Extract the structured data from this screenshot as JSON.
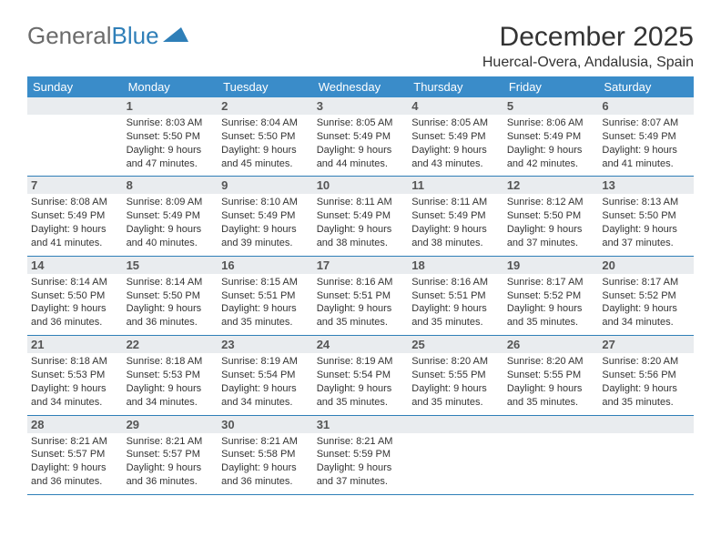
{
  "logo": {
    "text_gray": "General",
    "text_blue": "Blue",
    "shape_color": "#2f7fb8"
  },
  "title": "December 2025",
  "location": "Huercal-Overa, Andalusia, Spain",
  "header_bg": "#3a8cc9",
  "daynum_bg": "#e9ecef",
  "border_color": "#2f7fb8",
  "weekdays": [
    "Sunday",
    "Monday",
    "Tuesday",
    "Wednesday",
    "Thursday",
    "Friday",
    "Saturday"
  ],
  "first_weekday_index": 1,
  "days_in_month": 31,
  "days": {
    "1": {
      "sunrise": "8:03 AM",
      "sunset": "5:50 PM",
      "daylight": "9 hours and 47 minutes."
    },
    "2": {
      "sunrise": "8:04 AM",
      "sunset": "5:50 PM",
      "daylight": "9 hours and 45 minutes."
    },
    "3": {
      "sunrise": "8:05 AM",
      "sunset": "5:49 PM",
      "daylight": "9 hours and 44 minutes."
    },
    "4": {
      "sunrise": "8:05 AM",
      "sunset": "5:49 PM",
      "daylight": "9 hours and 43 minutes."
    },
    "5": {
      "sunrise": "8:06 AM",
      "sunset": "5:49 PM",
      "daylight": "9 hours and 42 minutes."
    },
    "6": {
      "sunrise": "8:07 AM",
      "sunset": "5:49 PM",
      "daylight": "9 hours and 41 minutes."
    },
    "7": {
      "sunrise": "8:08 AM",
      "sunset": "5:49 PM",
      "daylight": "9 hours and 41 minutes."
    },
    "8": {
      "sunrise": "8:09 AM",
      "sunset": "5:49 PM",
      "daylight": "9 hours and 40 minutes."
    },
    "9": {
      "sunrise": "8:10 AM",
      "sunset": "5:49 PM",
      "daylight": "9 hours and 39 minutes."
    },
    "10": {
      "sunrise": "8:11 AM",
      "sunset": "5:49 PM",
      "daylight": "9 hours and 38 minutes."
    },
    "11": {
      "sunrise": "8:11 AM",
      "sunset": "5:49 PM",
      "daylight": "9 hours and 38 minutes."
    },
    "12": {
      "sunrise": "8:12 AM",
      "sunset": "5:50 PM",
      "daylight": "9 hours and 37 minutes."
    },
    "13": {
      "sunrise": "8:13 AM",
      "sunset": "5:50 PM",
      "daylight": "9 hours and 37 minutes."
    },
    "14": {
      "sunrise": "8:14 AM",
      "sunset": "5:50 PM",
      "daylight": "9 hours and 36 minutes."
    },
    "15": {
      "sunrise": "8:14 AM",
      "sunset": "5:50 PM",
      "daylight": "9 hours and 36 minutes."
    },
    "16": {
      "sunrise": "8:15 AM",
      "sunset": "5:51 PM",
      "daylight": "9 hours and 35 minutes."
    },
    "17": {
      "sunrise": "8:16 AM",
      "sunset": "5:51 PM",
      "daylight": "9 hours and 35 minutes."
    },
    "18": {
      "sunrise": "8:16 AM",
      "sunset": "5:51 PM",
      "daylight": "9 hours and 35 minutes."
    },
    "19": {
      "sunrise": "8:17 AM",
      "sunset": "5:52 PM",
      "daylight": "9 hours and 35 minutes."
    },
    "20": {
      "sunrise": "8:17 AM",
      "sunset": "5:52 PM",
      "daylight": "9 hours and 34 minutes."
    },
    "21": {
      "sunrise": "8:18 AM",
      "sunset": "5:53 PM",
      "daylight": "9 hours and 34 minutes."
    },
    "22": {
      "sunrise": "8:18 AM",
      "sunset": "5:53 PM",
      "daylight": "9 hours and 34 minutes."
    },
    "23": {
      "sunrise": "8:19 AM",
      "sunset": "5:54 PM",
      "daylight": "9 hours and 34 minutes."
    },
    "24": {
      "sunrise": "8:19 AM",
      "sunset": "5:54 PM",
      "daylight": "9 hours and 35 minutes."
    },
    "25": {
      "sunrise": "8:20 AM",
      "sunset": "5:55 PM",
      "daylight": "9 hours and 35 minutes."
    },
    "26": {
      "sunrise": "8:20 AM",
      "sunset": "5:55 PM",
      "daylight": "9 hours and 35 minutes."
    },
    "27": {
      "sunrise": "8:20 AM",
      "sunset": "5:56 PM",
      "daylight": "9 hours and 35 minutes."
    },
    "28": {
      "sunrise": "8:21 AM",
      "sunset": "5:57 PM",
      "daylight": "9 hours and 36 minutes."
    },
    "29": {
      "sunrise": "8:21 AM",
      "sunset": "5:57 PM",
      "daylight": "9 hours and 36 minutes."
    },
    "30": {
      "sunrise": "8:21 AM",
      "sunset": "5:58 PM",
      "daylight": "9 hours and 36 minutes."
    },
    "31": {
      "sunrise": "8:21 AM",
      "sunset": "5:59 PM",
      "daylight": "9 hours and 37 minutes."
    }
  },
  "labels": {
    "sunrise": "Sunrise:",
    "sunset": "Sunset:",
    "daylight": "Daylight:"
  }
}
